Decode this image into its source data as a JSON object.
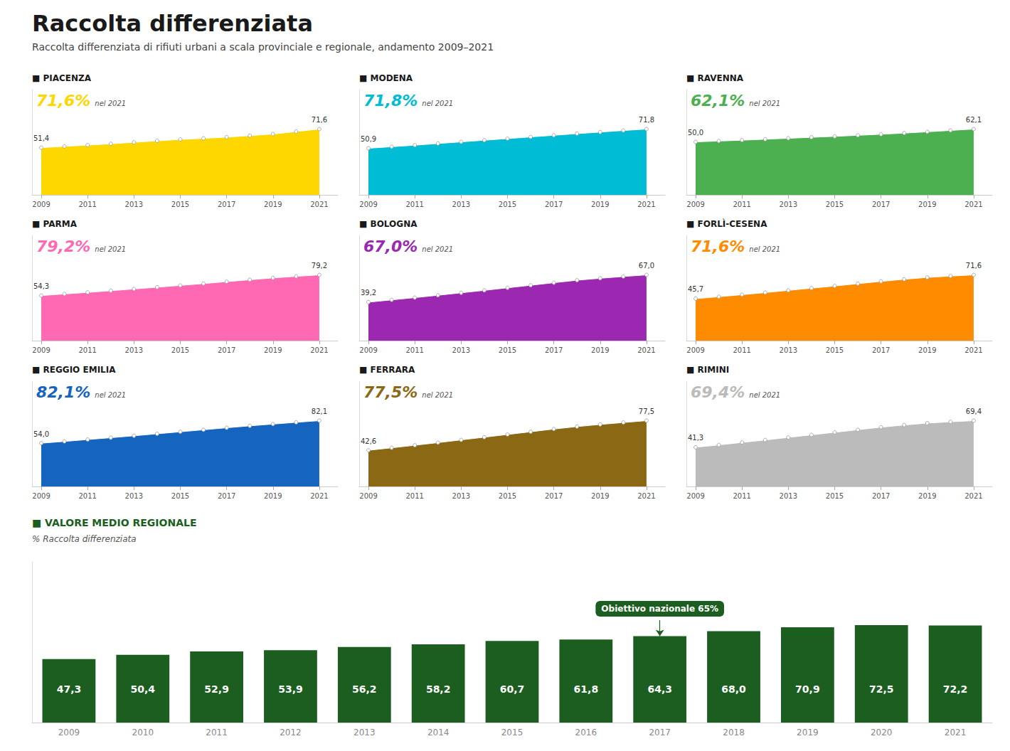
{
  "title": "Raccolta differenziata",
  "subtitle": "Raccolta differenziata di rifiuti urbani a scala provinciale e regionale, andamento 2009–2021",
  "chart_data": [
    {
      "type": "area",
      "title": "■ PIACENZA",
      "color": "#FFD700",
      "marker": "circle",
      "x": [
        2009,
        2010,
        2011,
        2012,
        2013,
        2014,
        2015,
        2016,
        2017,
        2018,
        2019,
        2020,
        2021
      ],
      "values": [
        51.4,
        52.8,
        54.1,
        55.6,
        57.2,
        58.8,
        60.3,
        61.5,
        62.8,
        64.5,
        66.2,
        68.9,
        71.6
      ],
      "xlim": [
        2008.6,
        2021.8
      ],
      "xticks": [
        2009,
        2011,
        2013,
        2015,
        2017,
        2019,
        2021
      ],
      "ylim": [
        0,
        114.56
      ],
      "grid": false,
      "tick_labels": "x",
      "annotations": [
        {
          "text": "71,6%"
        },
        {
          "text": "nel 2021"
        },
        {
          "text": "51,4",
          "x": 2009,
          "y": 51.4
        },
        {
          "text": "71,6",
          "x": 2021,
          "y": 71.6
        }
      ]
    },
    {
      "type": "area",
      "title": "■ MODENA",
      "color": "#00BCD4",
      "marker": "circle",
      "x": [
        2009,
        2010,
        2011,
        2012,
        2013,
        2014,
        2015,
        2016,
        2017,
        2018,
        2019,
        2020,
        2021
      ],
      "values": [
        50.9,
        52.5,
        54.2,
        56.0,
        57.8,
        59.6,
        61.4,
        63.2,
        65.0,
        66.8,
        68.5,
        70.2,
        71.8
      ],
      "xlim": [
        2008.6,
        2021.8
      ],
      "xticks": [
        2009,
        2011,
        2013,
        2015,
        2017,
        2019,
        2021
      ],
      "ylim": [
        0,
        114.88
      ],
      "grid": false,
      "tick_labels": "x",
      "annotations": [
        {
          "text": "71,8%"
        },
        {
          "text": "nel 2021"
        },
        {
          "text": "50,9",
          "x": 2009,
          "y": 50.9
        },
        {
          "text": "71,8",
          "x": 2021,
          "y": 71.8
        }
      ]
    },
    {
      "type": "area",
      "title": "■ RAVENNA",
      "color": "#4CAF50",
      "marker": "circle",
      "x": [
        2009,
        2010,
        2011,
        2012,
        2013,
        2014,
        2015,
        2016,
        2017,
        2018,
        2019,
        2020,
        2021
      ],
      "values": [
        50.0,
        50.8,
        51.6,
        52.5,
        53.4,
        54.3,
        55.2,
        56.2,
        57.2,
        58.3,
        59.5,
        60.8,
        62.1
      ],
      "xlim": [
        2008.6,
        2021.8
      ],
      "xticks": [
        2009,
        2011,
        2013,
        2015,
        2017,
        2019,
        2021
      ],
      "ylim": [
        0,
        99.36
      ],
      "grid": false,
      "tick_labels": "x",
      "annotations": [
        {
          "text": "62,1%"
        },
        {
          "text": "nel 2021"
        },
        {
          "text": "50,0",
          "x": 2009,
          "y": 50.0
        },
        {
          "text": "62,1",
          "x": 2021,
          "y": 62.1
        }
      ]
    },
    {
      "type": "area",
      "title": "■ PARMA",
      "color": "#FF69B4",
      "marker": "circle",
      "x": [
        2009,
        2010,
        2011,
        2012,
        2013,
        2014,
        2015,
        2016,
        2017,
        2018,
        2019,
        2020,
        2021
      ],
      "values": [
        54.3,
        56.2,
        58.1,
        60.1,
        62.2,
        64.3,
        66.5,
        68.7,
        71.0,
        73.3,
        75.5,
        77.4,
        79.2
      ],
      "xlim": [
        2008.6,
        2021.8
      ],
      "xticks": [
        2009,
        2011,
        2013,
        2015,
        2017,
        2019,
        2021
      ],
      "ylim": [
        0,
        126.72
      ],
      "grid": false,
      "tick_labels": "x",
      "annotations": [
        {
          "text": "79,2%"
        },
        {
          "text": "nel 2021"
        },
        {
          "text": "54,3",
          "x": 2009,
          "y": 54.3
        },
        {
          "text": "79,2",
          "x": 2021,
          "y": 79.2
        }
      ]
    },
    {
      "type": "area",
      "title": "■ BOLOGNA",
      "color": "#9C27B0",
      "marker": "circle",
      "x": [
        2009,
        2010,
        2011,
        2012,
        2013,
        2014,
        2015,
        2016,
        2017,
        2018,
        2019,
        2020,
        2021
      ],
      "values": [
        39.2,
        41.5,
        43.8,
        46.2,
        48.7,
        51.2,
        53.8,
        56.4,
        59.0,
        61.5,
        63.5,
        65.3,
        67.0
      ],
      "xlim": [
        2008.6,
        2021.8
      ],
      "xticks": [
        2009,
        2011,
        2013,
        2015,
        2017,
        2019,
        2021
      ],
      "ylim": [
        0,
        107.2
      ],
      "grid": false,
      "tick_labels": "x",
      "annotations": [
        {
          "text": "67,0%"
        },
        {
          "text": "nel 2021"
        },
        {
          "text": "39,2",
          "x": 2009,
          "y": 39.2
        },
        {
          "text": "67,0",
          "x": 2021,
          "y": 67.0
        }
      ]
    },
    {
      "type": "area",
      "title": "■ FORLÌ-CESENA",
      "color": "#FF8C00",
      "marker": "circle",
      "x": [
        2009,
        2010,
        2011,
        2012,
        2013,
        2014,
        2015,
        2016,
        2017,
        2018,
        2019,
        2020,
        2021
      ],
      "values": [
        45.7,
        47.8,
        50.0,
        52.3,
        54.7,
        57.1,
        59.5,
        62.0,
        64.5,
        66.8,
        68.8,
        70.3,
        71.6
      ],
      "xlim": [
        2008.6,
        2021.8
      ],
      "xticks": [
        2009,
        2011,
        2013,
        2015,
        2017,
        2019,
        2021
      ],
      "ylim": [
        0,
        114.56
      ],
      "grid": false,
      "tick_labels": "x",
      "annotations": [
        {
          "text": "71,6%"
        },
        {
          "text": "nel 2021"
        },
        {
          "text": "45,7",
          "x": 2009,
          "y": 45.7
        },
        {
          "text": "71,6",
          "x": 2021,
          "y": 71.6
        }
      ]
    },
    {
      "type": "area",
      "title": "■ REGGIO EMILIA",
      "color": "#1565C0",
      "marker": "circle",
      "x": [
        2009,
        2010,
        2011,
        2012,
        2013,
        2014,
        2015,
        2016,
        2017,
        2018,
        2019,
        2020,
        2021
      ],
      "values": [
        54.0,
        56.2,
        58.5,
        60.8,
        63.2,
        65.7,
        68.2,
        70.7,
        73.2,
        75.6,
        77.8,
        80.0,
        82.1
      ],
      "xlim": [
        2008.6,
        2021.8
      ],
      "xticks": [
        2009,
        2011,
        2013,
        2015,
        2017,
        2019,
        2021
      ],
      "ylim": [
        0,
        131.36
      ],
      "grid": false,
      "tick_labels": "x",
      "annotations": [
        {
          "text": "82,1%"
        },
        {
          "text": "nel 2021"
        },
        {
          "text": "54,0",
          "x": 2009,
          "y": 54.0
        },
        {
          "text": "82,1",
          "x": 2021,
          "y": 82.1
        }
      ]
    },
    {
      "type": "area",
      "title": "■ FERRARA",
      "color": "#8B6914",
      "marker": "circle",
      "x": [
        2009,
        2010,
        2011,
        2012,
        2013,
        2014,
        2015,
        2016,
        2017,
        2018,
        2019,
        2020,
        2021
      ],
      "values": [
        42.6,
        45.5,
        48.5,
        51.6,
        54.8,
        58.0,
        61.2,
        64.4,
        67.6,
        70.5,
        73.0,
        75.3,
        77.5
      ],
      "xlim": [
        2008.6,
        2021.8
      ],
      "xticks": [
        2009,
        2011,
        2013,
        2015,
        2017,
        2019,
        2021
      ],
      "ylim": [
        0,
        124
      ],
      "grid": false,
      "tick_labels": "x",
      "annotations": [
        {
          "text": "77,5%"
        },
        {
          "text": "nel 2021"
        },
        {
          "text": "42,6",
          "x": 2009,
          "y": 42.6
        },
        {
          "text": "77,5",
          "x": 2021,
          "y": 77.5
        }
      ]
    },
    {
      "type": "area",
      "title": "■ RIMINI",
      "color": "#BBBBBB",
      "marker": "circle",
      "x": [
        2009,
        2010,
        2011,
        2012,
        2013,
        2014,
        2015,
        2016,
        2017,
        2018,
        2019,
        2020,
        2021
      ],
      "values": [
        41.3,
        43.8,
        46.4,
        49.0,
        51.7,
        54.4,
        57.1,
        59.8,
        62.5,
        64.8,
        66.8,
        68.2,
        69.4
      ],
      "xlim": [
        2008.6,
        2021.8
      ],
      "xticks": [
        2009,
        2011,
        2013,
        2015,
        2017,
        2019,
        2021
      ],
      "ylim": [
        0,
        111.04
      ],
      "grid": false,
      "tick_labels": "x",
      "annotations": [
        {
          "text": "69,4%"
        },
        {
          "text": "nel 2021"
        },
        {
          "text": "41,3",
          "x": 2009,
          "y": 41.3
        },
        {
          "text": "69,4",
          "x": 2021,
          "y": 69.4
        }
      ]
    },
    {
      "type": "bar",
      "title": "■ VALORE MEDIO REGIONALE",
      "subtitle": "% Raccolta differenziata",
      "color": "#1B5E20",
      "categories": [
        "2009",
        "2010",
        "2011",
        "2012",
        "2013",
        "2014",
        "2015",
        "2016",
        "2017",
        "2018",
        "2019",
        "2020",
        "2021"
      ],
      "values": [
        47.3,
        50.4,
        52.9,
        53.9,
        56.2,
        58.2,
        60.7,
        61.8,
        64.3,
        68.0,
        70.9,
        72.5,
        72.2
      ],
      "value_labels": [
        "47,3",
        "50,4",
        "52,9",
        "53,9",
        "56,2",
        "58,2",
        "60,7",
        "61,8",
        "64,3",
        "68,0",
        "70,9",
        "72,5",
        "72,2"
      ],
      "data_labels": true,
      "ylim": [
        0,
        119.625
      ],
      "grid": false,
      "tick_labels": "x",
      "annotations": [
        {
          "text": "Obiettivo nazionale 65%",
          "x": "2017",
          "y": 64.3
        }
      ]
    }
  ]
}
